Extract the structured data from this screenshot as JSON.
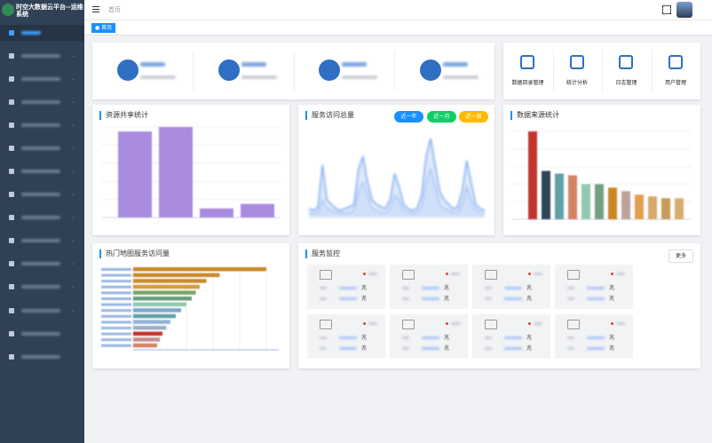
{
  "sidebar": {
    "title": "时空大数据云平台--运维系统"
  },
  "header": {
    "breadcrumb": "首页",
    "tag": "首页"
  },
  "shortcuts": [
    "数据目录管理",
    "统计分析",
    "日志管理",
    "用户管理"
  ],
  "panels": {
    "resource": {
      "title": "资源共享统计",
      "type": "bar",
      "values": [
        95,
        100,
        10,
        15
      ],
      "color": "#a98be0"
    },
    "visits": {
      "title": "服务访问总量",
      "buttons": [
        "近一年",
        "近一月",
        "近一周"
      ],
      "type": "line",
      "series": [
        {
          "color": "#7aa7f0",
          "values": [
            10,
            8,
            12,
            60,
            20,
            15,
            10,
            8,
            10,
            12,
            15,
            55,
            70,
            40,
            20,
            15,
            12,
            10,
            20,
            50,
            35,
            15,
            10,
            8,
            10,
            25,
            70,
            90,
            60,
            30,
            20,
            15,
            10,
            12,
            30,
            65,
            40,
            15,
            10,
            8
          ]
        },
        {
          "color": "#a9c6f5",
          "values": [
            5,
            5,
            6,
            20,
            10,
            8,
            6,
            5,
            5,
            6,
            8,
            30,
            40,
            25,
            10,
            8,
            6,
            5,
            10,
            25,
            20,
            8,
            6,
            5,
            5,
            12,
            40,
            55,
            35,
            15,
            10,
            8,
            6,
            6,
            15,
            35,
            20,
            8,
            6,
            5
          ]
        }
      ]
    },
    "sources": {
      "title": "数据来源统计",
      "type": "bar",
      "values": [
        100,
        55,
        52,
        50,
        40,
        40,
        36,
        32,
        28,
        26,
        24,
        24
      ],
      "colors": [
        "#c23531",
        "#2f4554",
        "#61a0a8",
        "#d48265",
        "#91c7ae",
        "#749f83",
        "#ca8622",
        "#bda29a",
        "#e0a050",
        "#d9a86c",
        "#c99a5a",
        "#d8ae70"
      ]
    },
    "hotmap": {
      "title": "热门地图服务访问量",
      "type": "hbar",
      "values": [
        100,
        65,
        55,
        50,
        47,
        44,
        40,
        36,
        32,
        28,
        25,
        22,
        20,
        18
      ],
      "colors": [
        "#c98a2b",
        "#c98a2b",
        "#c98a2b",
        "#d49a3a",
        "#7aa36a",
        "#6a9e7e",
        "#91c7ae",
        "#7aa7c8",
        "#61a0a8",
        "#8fb3d8",
        "#9ab0c8",
        "#c23531",
        "#c98a8a",
        "#d48265"
      ]
    },
    "monitor": {
      "title": "服务监控",
      "more": "更多",
      "cards": [
        [
          "兆",
          "兆"
        ],
        [
          "兆",
          "兆"
        ],
        [
          "兆",
          "兆"
        ],
        [
          "兆",
          "兆"
        ],
        [
          "兆",
          "兆"
        ],
        [
          "兆",
          "兆"
        ],
        [
          "兆",
          "兆"
        ],
        [
          "兆",
          "兆"
        ]
      ]
    }
  }
}
